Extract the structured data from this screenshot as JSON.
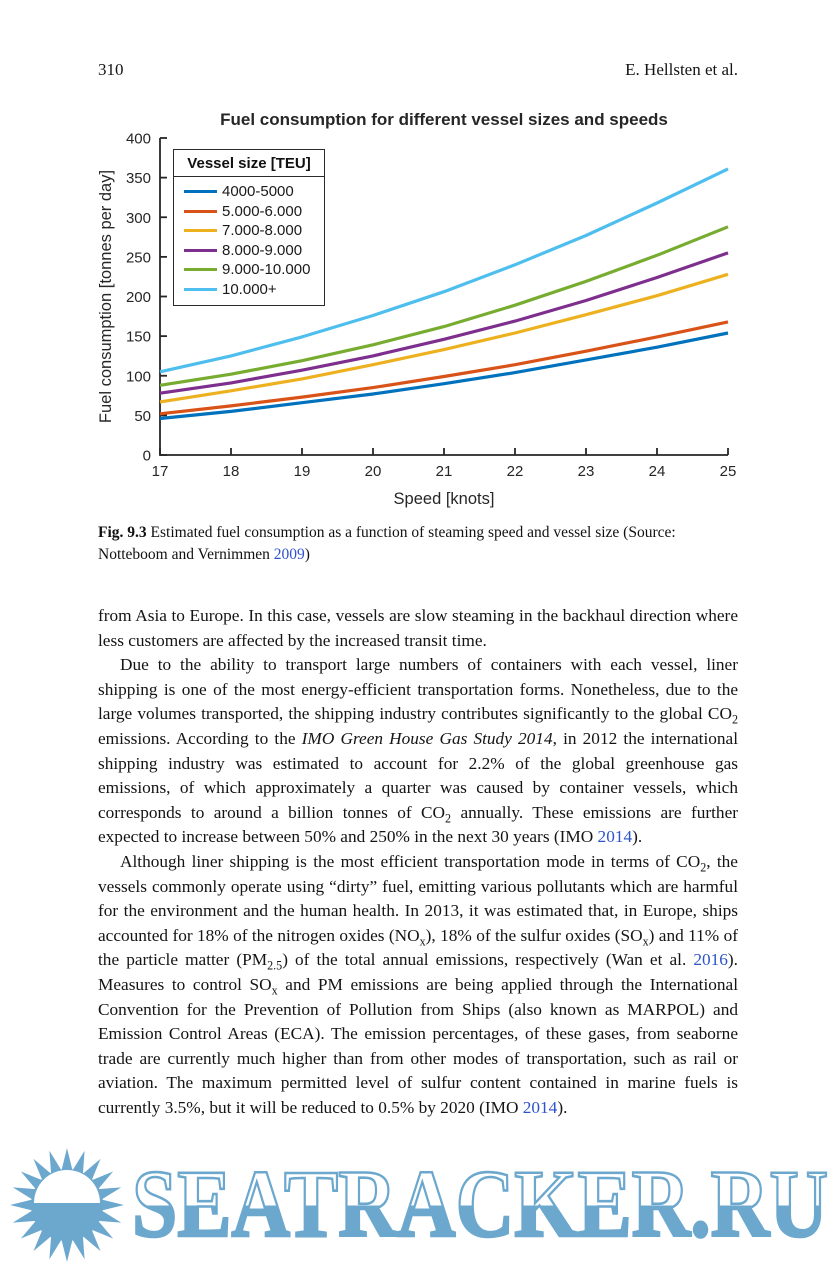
{
  "header": {
    "page_number": "310",
    "authors": "E. Hellsten et al."
  },
  "colors": {
    "link": "#2d53cb",
    "axis": "#262626",
    "watermark_blue": "#6CA8CE"
  },
  "chart_data": {
    "type": "line",
    "title": "Fuel consumption for different vessel sizes and speeds",
    "xlabel": "Speed [knots]",
    "ylabel": "Fuel consumption [tonnes per day]",
    "x": [
      17,
      18,
      19,
      20,
      21,
      22,
      23,
      24,
      25
    ],
    "xlim": [
      17,
      25
    ],
    "ylim": [
      0,
      400
    ],
    "yticks": [
      0,
      50,
      100,
      150,
      200,
      250,
      300,
      350,
      400
    ],
    "grid": false,
    "legend_title": "Vessel size [TEU]",
    "legend_position": "top-left",
    "series": [
      {
        "name": "4000-5000",
        "color": "#0072BD",
        "values": [
          46,
          55,
          66,
          77,
          90,
          104,
          120,
          136,
          154
        ]
      },
      {
        "name": "5.000-6.000",
        "color": "#D95319",
        "values": [
          52,
          62,
          73,
          85,
          99,
          114,
          131,
          149,
          168
        ]
      },
      {
        "name": "7.000-8.000",
        "color": "#EDB120",
        "values": [
          67,
          81,
          96,
          114,
          133,
          154,
          177,
          201,
          228
        ]
      },
      {
        "name": "8.000-9.000",
        "color": "#7E2F8E",
        "values": [
          78,
          91,
          107,
          125,
          146,
          169,
          195,
          224,
          255
        ]
      },
      {
        "name": "9.000-10.000",
        "color": "#77AC30",
        "values": [
          88,
          102,
          119,
          139,
          162,
          189,
          219,
          252,
          288
        ]
      },
      {
        "name": "10.000+",
        "color": "#4DBEEE",
        "values": [
          105,
          125,
          149,
          176,
          206,
          240,
          277,
          318,
          361
        ]
      }
    ]
  },
  "figure_caption": {
    "segments": [
      {
        "t": "Fig. 9.3",
        "s": "b"
      },
      {
        "t": "  Estimated fuel consumption as a function of steaming speed and vessel size (Source: Notteboom and Vernimmen "
      },
      {
        "t": "2009",
        "s": "link"
      },
      {
        "t": ")"
      }
    ]
  },
  "body": {
    "paragraphs": [
      {
        "indent": false,
        "segments": [
          {
            "t": "from Asia to Europe. In this case, vessels are slow steaming in the backhaul direction where less customers are affected by the increased transit time."
          }
        ]
      },
      {
        "indent": true,
        "segments": [
          {
            "t": "Due to the ability to transport large numbers of containers with each vessel, liner shipping is one of the most energy-efficient transportation forms. Nonetheless, due to the large volumes transported, the shipping industry contributes significantly to the global CO"
          },
          {
            "t": "2",
            "s": "sub"
          },
          {
            "t": " emissions. According to the "
          },
          {
            "t": "IMO Green House Gas Study 2014",
            "s": "i"
          },
          {
            "t": ", in 2012 the international shipping industry was estimated to account for 2.2% of the global greenhouse gas emissions, of which approximately a quarter was caused by container vessels, which corresponds to around a billion tonnes of CO"
          },
          {
            "t": "2",
            "s": "sub"
          },
          {
            "t": " annually. These emissions are further expected to increase between 50% and 250% in the next 30 years (IMO "
          },
          {
            "t": "2014",
            "s": "link"
          },
          {
            "t": ")."
          }
        ]
      },
      {
        "indent": true,
        "segments": [
          {
            "t": "Although liner shipping is the most efficient transportation mode in terms of CO"
          },
          {
            "t": "2",
            "s": "sub"
          },
          {
            "t": ", the vessels commonly operate using “dirty” fuel, emitting various pollutants which are harmful for the environment and the human health. In 2013, it was estimated that, in Europe, ships accounted for 18% of the nitrogen oxides (NO"
          },
          {
            "t": "x",
            "s": "sub"
          },
          {
            "t": "), 18% of the sulfur oxides (SO"
          },
          {
            "t": "x",
            "s": "sub"
          },
          {
            "t": ") and 11% of the particle matter (PM"
          },
          {
            "t": "2.5",
            "s": "sub"
          },
          {
            "t": ") of the total annual emissions, respectively (Wan et al. "
          },
          {
            "t": "2016",
            "s": "link"
          },
          {
            "t": "). Measures to control SO"
          },
          {
            "t": "x",
            "s": "sub"
          },
          {
            "t": " and PM emissions are being applied through the International Convention for the Prevention of Pollution from Ships (also known as MARPOL) and Emission Control Areas (ECA). The emission percentages, of these gases, from seaborne trade are currently much higher than from other modes of transportation, such as rail or aviation. The maximum permitted level of sulfur content contained in marine fuels is currently 3.5%, but it will be reduced to 0.5% by 2020 (IMO "
          },
          {
            "t": "2014",
            "s": "link"
          },
          {
            "t": ")."
          }
        ]
      }
    ]
  },
  "watermark": {
    "text": "SEATRACKER.RU",
    "sun_icon": "sunrise-starburst-icon"
  }
}
